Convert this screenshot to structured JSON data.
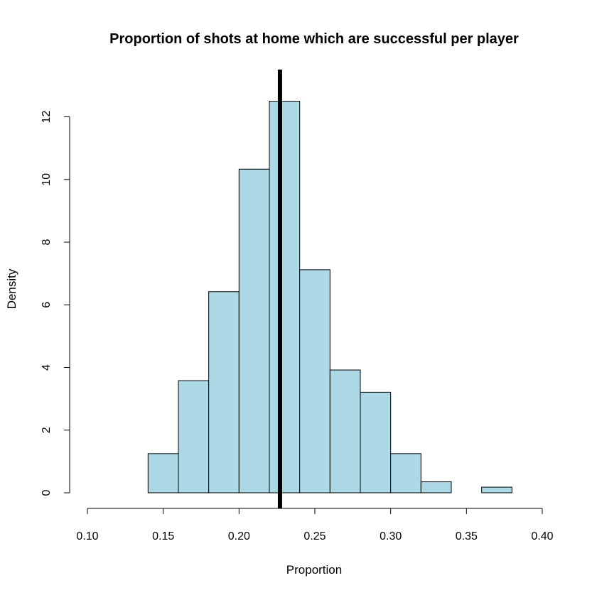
{
  "chart_data": {
    "type": "bar",
    "subtype": "histogram",
    "title": "Proportion of shots at home which are successful per player",
    "xlabel": "Proportion",
    "ylabel": "Density",
    "xlim": [
      0.1,
      0.4
    ],
    "ylim": [
      0,
      12.5
    ],
    "x_ticks": [
      "0.10",
      "0.15",
      "0.20",
      "0.25",
      "0.30",
      "0.35",
      "0.40"
    ],
    "y_ticks": [
      "0",
      "2",
      "4",
      "6",
      "8",
      "10",
      "12"
    ],
    "bins": [
      {
        "x0": 0.14,
        "x1": 0.16,
        "density": 1.25
      },
      {
        "x0": 0.16,
        "x1": 0.18,
        "density": 3.58
      },
      {
        "x0": 0.18,
        "x1": 0.2,
        "density": 6.42
      },
      {
        "x0": 0.2,
        "x1": 0.22,
        "density": 10.33
      },
      {
        "x0": 0.22,
        "x1": 0.24,
        "density": 12.5
      },
      {
        "x0": 0.24,
        "x1": 0.26,
        "density": 7.12
      },
      {
        "x0": 0.26,
        "x1": 0.28,
        "density": 3.92
      },
      {
        "x0": 0.28,
        "x1": 0.3,
        "density": 3.21
      },
      {
        "x0": 0.3,
        "x1": 0.32,
        "density": 1.25
      },
      {
        "x0": 0.32,
        "x1": 0.34,
        "density": 0.35
      },
      {
        "x0": 0.34,
        "x1": 0.36,
        "density": 0
      },
      {
        "x0": 0.36,
        "x1": 0.38,
        "density": 0.18
      }
    ],
    "reference_line": {
      "x": 0.227,
      "color": "#000000"
    },
    "bar_color": "#add8e6",
    "bar_border_color": "#000000",
    "grid": false,
    "legend": "none"
  }
}
